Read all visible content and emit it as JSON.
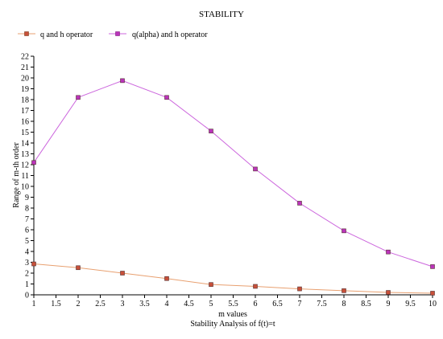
{
  "chart_data": {
    "type": "line",
    "title": "STABILITY",
    "xlabel": "m values",
    "ylabel": "Range of m-th order",
    "subtitle": "Stability Analysis of f(t)=t",
    "xlim": [
      1,
      10
    ],
    "ylim": [
      0,
      22
    ],
    "x_ticks": [
      "1",
      "1.5",
      "2",
      "2.5",
      "3",
      "3.5",
      "4",
      "4.5",
      "5",
      "5.5",
      "6",
      "6.5",
      "7",
      "7.5",
      "8",
      "8.5",
      "9",
      "9.5",
      "10"
    ],
    "y_ticks": [
      "0",
      "1",
      "2",
      "3",
      "4",
      "5",
      "6",
      "7",
      "8",
      "9",
      "10",
      "11",
      "12",
      "13",
      "14",
      "15",
      "16",
      "17",
      "18",
      "19",
      "20",
      "21",
      "22"
    ],
    "grid": false,
    "legend_position": "top-left",
    "x": [
      1,
      2,
      3,
      4,
      5,
      6,
      7,
      8,
      9,
      10
    ],
    "series": [
      {
        "name": "q and h operator",
        "color": "#e8a070",
        "marker_fill": "#c8503a",
        "values": [
          2.85,
          2.5,
          2.0,
          1.5,
          0.95,
          0.78,
          0.55,
          0.38,
          0.22,
          0.15
        ]
      },
      {
        "name": "q(alpha) and h operator",
        "color": "#cc66dd",
        "marker_fill": "#bb33bb",
        "values": [
          12.2,
          18.2,
          19.75,
          18.2,
          15.1,
          11.6,
          8.45,
          5.9,
          3.95,
          2.6
        ]
      }
    ]
  }
}
